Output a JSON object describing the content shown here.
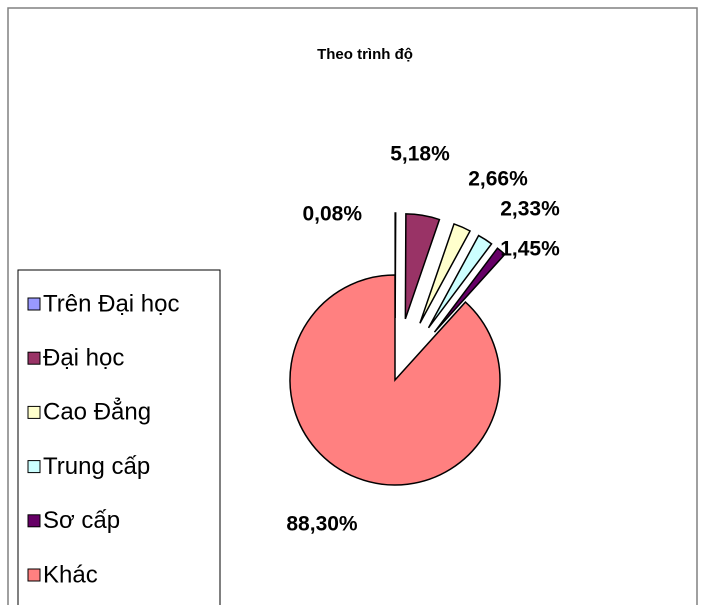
{
  "chart_data": {
    "type": "pie",
    "title": "Theo trình độ",
    "categories": [
      "Trên Đại học",
      "Đại học",
      "Cao Đẳng",
      "Trung cấp",
      "Sơ cấp",
      "Khác"
    ],
    "values": [
      0.08,
      5.18,
      2.66,
      2.33,
      1.45,
      88.3
    ],
    "value_labels": [
      "0,08%",
      "5,18%",
      "2,66%",
      "2,33%",
      "1,45%",
      "88,30%"
    ],
    "colors": [
      "#9999ff",
      "#993366",
      "#ffffcc",
      "#ccffff",
      "#660066",
      "#ff8080"
    ]
  }
}
